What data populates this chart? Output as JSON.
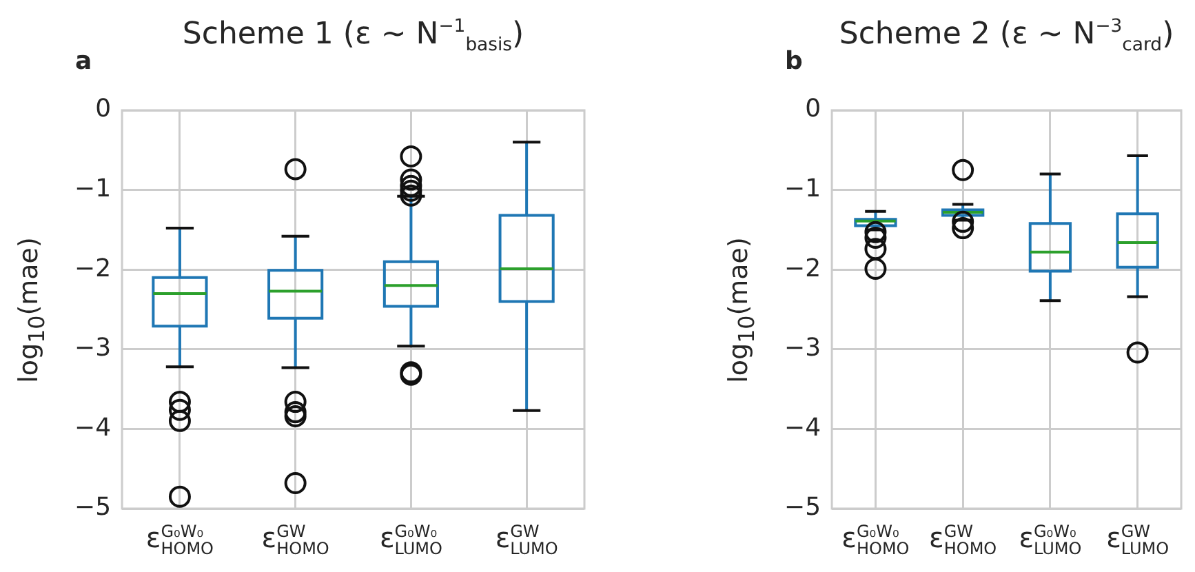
{
  "chart_data": [
    {
      "type": "box",
      "title": "Scheme 1 (ε ∼ N$^{−1}$$_{basis}$)",
      "ylabel": "log$_{10}$(mae)",
      "annotations": [
        "a"
      ],
      "categories": [
        "ε$^{G₀W₀}$$_{HOMO}$",
        "ε$^{GW}$$_{HOMO}$",
        "ε$^{G₀W₀}$$_{LUMO}$",
        "ε$^{GW}$$_{LUMO}$"
      ],
      "color": "#1f77b4",
      "boxes": [
        {
          "low": -3.22,
          "q1": -2.71,
          "median": -2.3,
          "q3": -2.1,
          "high": -1.48,
          "outliers": [
            -3.66,
            -3.76,
            -3.9,
            -4.85
          ]
        },
        {
          "low": -3.23,
          "q1": -2.61,
          "median": -2.27,
          "q3": -2.01,
          "high": -1.58,
          "outliers": [
            -0.74,
            -3.66,
            -3.79,
            -3.84,
            -4.68
          ]
        },
        {
          "low": -2.96,
          "q1": -2.46,
          "median": -2.2,
          "q3": -1.9,
          "high": -1.08,
          "outliers": [
            -0.58,
            -0.87,
            -0.95,
            -1.01,
            -1.07,
            -3.29,
            -3.32
          ]
        },
        {
          "low": -3.77,
          "q1": -2.4,
          "median": -1.99,
          "q3": -1.32,
          "high": -0.4
        }
      ],
      "ylim": [
        -5,
        0
      ],
      "yticks": [
        -5,
        -4,
        -3,
        -2,
        -1,
        0
      ],
      "grid": true
    },
    {
      "type": "box",
      "title": "Scheme 2 (ε ∼ N$^{−3}$$_{card}$)",
      "ylabel": "log$_{10}$(mae)",
      "annotations": [
        "b"
      ],
      "categories": [
        "ε$^{G₀W₀}$$_{HOMO}$",
        "ε$^{GW}$$_{HOMO}$",
        "ε$^{G₀W₀}$$_{LUMO}$",
        "ε$^{GW}$$_{LUMO}$"
      ],
      "color": "#1f77b4",
      "boxes": [
        {
          "low": -1.5,
          "q1": -1.45,
          "median": -1.39,
          "q3": -1.37,
          "high": -1.27,
          "outliers": [
            -1.53,
            -1.6,
            -1.74,
            -1.99
          ]
        },
        {
          "low": -1.38,
          "q1": -1.32,
          "median": -1.28,
          "q3": -1.25,
          "high": -1.18,
          "outliers": [
            -0.75,
            -1.4,
            -1.48
          ]
        },
        {
          "low": -2.39,
          "q1": -2.02,
          "median": -1.78,
          "q3": -1.42,
          "high": -0.8
        },
        {
          "low": -2.34,
          "q1": -1.97,
          "median": -1.66,
          "q3": -1.3,
          "high": -0.57,
          "outliers": [
            -3.04
          ]
        }
      ],
      "ylim": [
        -5,
        0
      ],
      "yticks": [
        -5,
        -4,
        -3,
        -2,
        -1,
        0
      ],
      "grid": true
    }
  ]
}
